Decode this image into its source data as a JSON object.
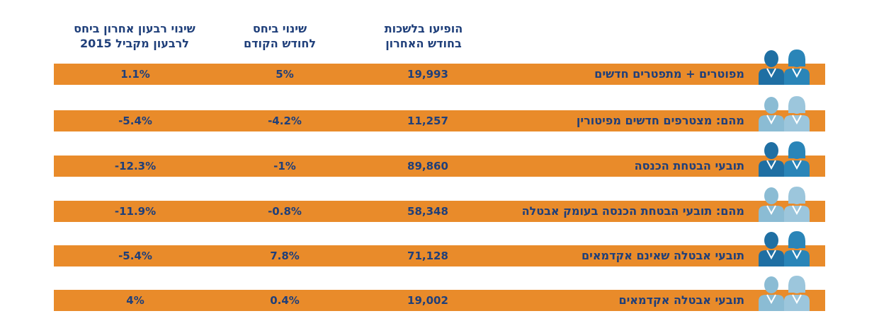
{
  "headers": {
    "count": [
      "הופיעו בלשכות",
      "בחודש האחרון"
    ],
    "prev_month": [
      "שינוי ביחס",
      "לחודש הקודם"
    ],
    "year": [
      "שינוי רבעון אחרון ביחס",
      "לרבעון מקביל 2015"
    ]
  },
  "colors": {
    "bar": "#e98b2a",
    "text": "#1f3f7a",
    "icon_dark": "#1f6fa3",
    "icon_light": "#8bbcd4"
  },
  "chart_data": {
    "type": "table",
    "columns": [
      "",
      "הופיעו בלשכות בחודש האחרון",
      "שינוי ביחס לחודש הקודם",
      "שינוי רבעון אחרון ביחס לרבעון מקביל 2015"
    ],
    "rows": [
      {
        "label": "מפוטרים + מתפטרים חדשים",
        "count": "19,993",
        "prev_month": "5%",
        "year": "1.1%",
        "icon": "people-dark-icon"
      },
      {
        "label": "מהם: מצטרפים חדשים מפיטורין",
        "count": "11,257",
        "prev_month": "-4.2%",
        "year": "-5.4%",
        "icon": "people-light-icon"
      },
      {
        "label": "תובעי הבטחת הכנסה",
        "count": "89,860",
        "prev_month": "-1%",
        "year": "-12.3%",
        "icon": "people-dark-icon"
      },
      {
        "label": "מהם: תובעי הבטחת הכנסה בעומק אבטלה",
        "count": "58,348",
        "prev_month": "-0.8%",
        "year": "-11.9%",
        "icon": "people-light-icon"
      },
      {
        "label": "תובעי אבטלה שאינם אקדמאים",
        "count": "71,128",
        "prev_month": "7.8%",
        "year": "-5.4%",
        "icon": "people-dark-icon"
      },
      {
        "label": "תובעי אבטלה אקדמאים",
        "count": "19,002",
        "prev_month": "0.4%",
        "year": "4%",
        "icon": "people-light-icon"
      }
    ]
  }
}
